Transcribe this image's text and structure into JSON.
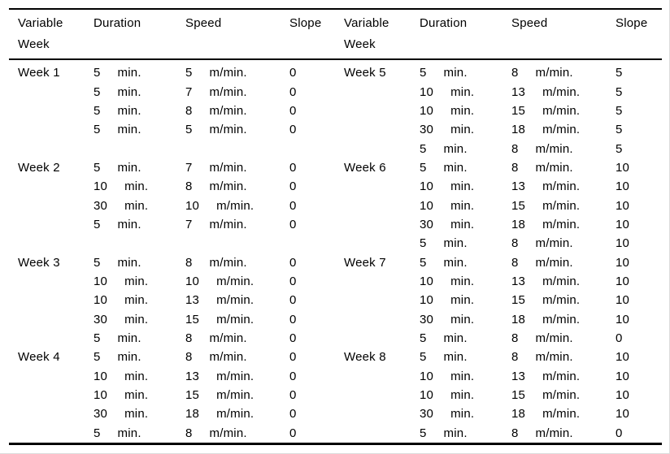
{
  "page": {
    "background": "#ffffff",
    "rule_color": "#000000",
    "text_color": "#000000"
  },
  "header": {
    "variable_line1": "Variable",
    "variable_line2": "Week",
    "duration": "Duration",
    "speed": "Speed",
    "slope": "Slope"
  },
  "units": {
    "duration": "min.",
    "speed": "m/min."
  },
  "halves": [
    {
      "side": "left",
      "weeks": [
        {
          "label": "Week 1",
          "trailing_blank_rows": 1,
          "rows": [
            {
              "duration": "5",
              "speed": "5",
              "slope": "0"
            },
            {
              "duration": "5",
              "speed": "7",
              "slope": "0"
            },
            {
              "duration": "5",
              "speed": "8",
              "slope": "0"
            },
            {
              "duration": "5",
              "speed": "5",
              "slope": "0"
            }
          ]
        },
        {
          "label": "Week 2",
          "trailing_blank_rows": 1,
          "rows": [
            {
              "duration": "5",
              "speed": "7",
              "slope": "0"
            },
            {
              "duration": "10",
              "speed": "8",
              "slope": "0"
            },
            {
              "duration": "30",
              "speed": "10",
              "slope": "0"
            },
            {
              "duration": "5",
              "speed": "7",
              "slope": "0"
            }
          ]
        },
        {
          "label": "Week 3",
          "trailing_blank_rows": 0,
          "rows": [
            {
              "duration": "5",
              "speed": "8",
              "slope": "0"
            },
            {
              "duration": "10",
              "speed": "10",
              "slope": "0"
            },
            {
              "duration": "10",
              "speed": "13",
              "slope": "0"
            },
            {
              "duration": "30",
              "speed": "15",
              "slope": "0"
            },
            {
              "duration": "5",
              "speed": "8",
              "slope": "0"
            }
          ]
        },
        {
          "label": "Week 4",
          "trailing_blank_rows": 0,
          "rows": [
            {
              "duration": "5",
              "speed": "8",
              "slope": "0"
            },
            {
              "duration": "10",
              "speed": "13",
              "slope": "0"
            },
            {
              "duration": "10",
              "speed": "15",
              "slope": "0"
            },
            {
              "duration": "30",
              "speed": "18",
              "slope": "0"
            },
            {
              "duration": "5",
              "speed": "8",
              "slope": "0"
            }
          ]
        }
      ]
    },
    {
      "side": "right",
      "weeks": [
        {
          "label": "Week 5",
          "trailing_blank_rows": 0,
          "rows": [
            {
              "duration": "5",
              "speed": "8",
              "slope": "5"
            },
            {
              "duration": "10",
              "speed": "13",
              "slope": "5"
            },
            {
              "duration": "10",
              "speed": "15",
              "slope": "5"
            },
            {
              "duration": "30",
              "speed": "18",
              "slope": "5"
            },
            {
              "duration": "5",
              "speed": "8",
              "slope": "5"
            }
          ]
        },
        {
          "label": "Week 6",
          "trailing_blank_rows": 0,
          "rows": [
            {
              "duration": "5",
              "speed": "8",
              "slope": "10"
            },
            {
              "duration": "10",
              "speed": "13",
              "slope": "10"
            },
            {
              "duration": "10",
              "speed": "15",
              "slope": "10"
            },
            {
              "duration": "30",
              "speed": "18",
              "slope": "10"
            },
            {
              "duration": "5",
              "speed": "8",
              "slope": "10"
            }
          ]
        },
        {
          "label": "Week 7",
          "trailing_blank_rows": 0,
          "rows": [
            {
              "duration": "5",
              "speed": "8",
              "slope": "10"
            },
            {
              "duration": "10",
              "speed": "13",
              "slope": "10"
            },
            {
              "duration": "10",
              "speed": "15",
              "slope": "10"
            },
            {
              "duration": "30",
              "speed": "18",
              "slope": "10"
            },
            {
              "duration": "5",
              "speed": "8",
              "slope": "0"
            }
          ]
        },
        {
          "label": "Week 8",
          "trailing_blank_rows": 0,
          "rows": [
            {
              "duration": "5",
              "speed": "8",
              "slope": "10"
            },
            {
              "duration": "10",
              "speed": "13",
              "slope": "10"
            },
            {
              "duration": "10",
              "speed": "15",
              "slope": "10"
            },
            {
              "duration": "30",
              "speed": "18",
              "slope": "10"
            },
            {
              "duration": "5",
              "speed": "8",
              "slope": "0"
            }
          ]
        }
      ]
    }
  ]
}
